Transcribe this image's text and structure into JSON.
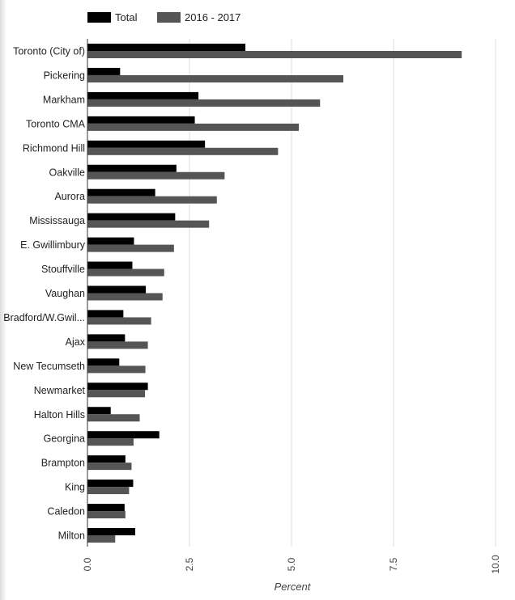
{
  "chart_data": {
    "type": "bar",
    "orientation": "horizontal",
    "categories": [
      "Toronto (City of)",
      "Pickering",
      "Markham",
      "Toronto CMA",
      "Richmond Hill",
      "Oakville",
      "Aurora",
      "Mississauga",
      "E. Gwillimbury",
      "Stouffville",
      "Vaughan",
      "Bradford/W.Gwil...",
      "Ajax",
      "New Tecumseth",
      "Newmarket",
      "Halton Hills",
      "Georgina",
      "Brampton",
      "King",
      "Caledon",
      "Milton"
    ],
    "series": [
      {
        "name": "Total",
        "color": "#000000",
        "values": [
          3.87,
          0.8,
          2.72,
          2.63,
          2.88,
          2.18,
          1.66,
          2.15,
          1.14,
          1.1,
          1.43,
          0.88,
          0.92,
          0.78,
          1.48,
          0.57,
          1.76,
          0.93,
          1.12,
          0.91,
          1.17
        ]
      },
      {
        "name": "2016 - 2017",
        "color": "#555555",
        "values": [
          9.17,
          6.27,
          5.7,
          5.18,
          4.67,
          3.36,
          3.17,
          2.98,
          2.12,
          1.88,
          1.84,
          1.56,
          1.48,
          1.42,
          1.41,
          1.28,
          1.13,
          1.08,
          1.02,
          0.93,
          0.68
        ]
      }
    ],
    "x_ticks": [
      "0.0",
      "2.5",
      "5.0",
      "7.5",
      "10.0"
    ],
    "xlim": [
      0,
      10
    ],
    "xlabel": "Percent",
    "ylabel": "",
    "title": "",
    "grid": true,
    "legend_position": "top-left"
  }
}
